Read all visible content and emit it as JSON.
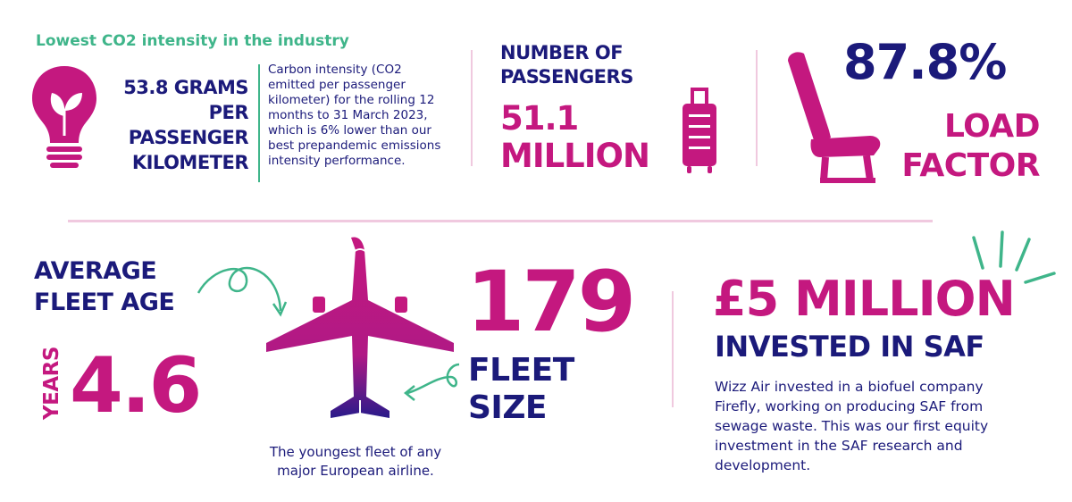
{
  "co2": {
    "heading": "Lowest CO2 intensity in the industry",
    "value_lines": [
      "53.8 GRAMS",
      "PER",
      "PASSENGER",
      "KILOMETER"
    ],
    "description": "Carbon intensity (CO2 emitted per passenger kilometer) for the rolling 12 months to 31 March 2023, which is 6% lower than our best prepandemic emissions intensity performance."
  },
  "passengers": {
    "label_lines": [
      "NUMBER OF",
      "PASSENGERS"
    ],
    "value_lines": [
      "51.1",
      "MILLION"
    ]
  },
  "load_factor": {
    "value": "87.8%",
    "label_lines": [
      "LOAD",
      "FACTOR"
    ]
  },
  "fleet_age": {
    "label_lines": [
      "AVERAGE",
      "FLEET AGE"
    ],
    "unit": "YEARS",
    "value": "4.6",
    "note_lines": [
      "The youngest fleet of any",
      "major European airline."
    ]
  },
  "fleet_size": {
    "value": "179",
    "label_lines": [
      "FLEET",
      "SIZE"
    ]
  },
  "saf": {
    "amount": "£5 MILLION",
    "label": "INVESTED IN SAF",
    "description": "Wizz Air invested in a biofuel company Firefly, working on producing SAF from sewage waste. This was our first equity investment in the SAF research and development."
  },
  "colors": {
    "navy": "#1b1a7a",
    "magenta": "#c4187f",
    "green": "#3fb58a",
    "divider": "#f0c9df"
  },
  "icons": [
    "lightbulb-leaf-icon",
    "suitcase-icon",
    "seat-icon",
    "airplane-icon",
    "arrow-swirl-icon",
    "burst-lines-icon"
  ]
}
